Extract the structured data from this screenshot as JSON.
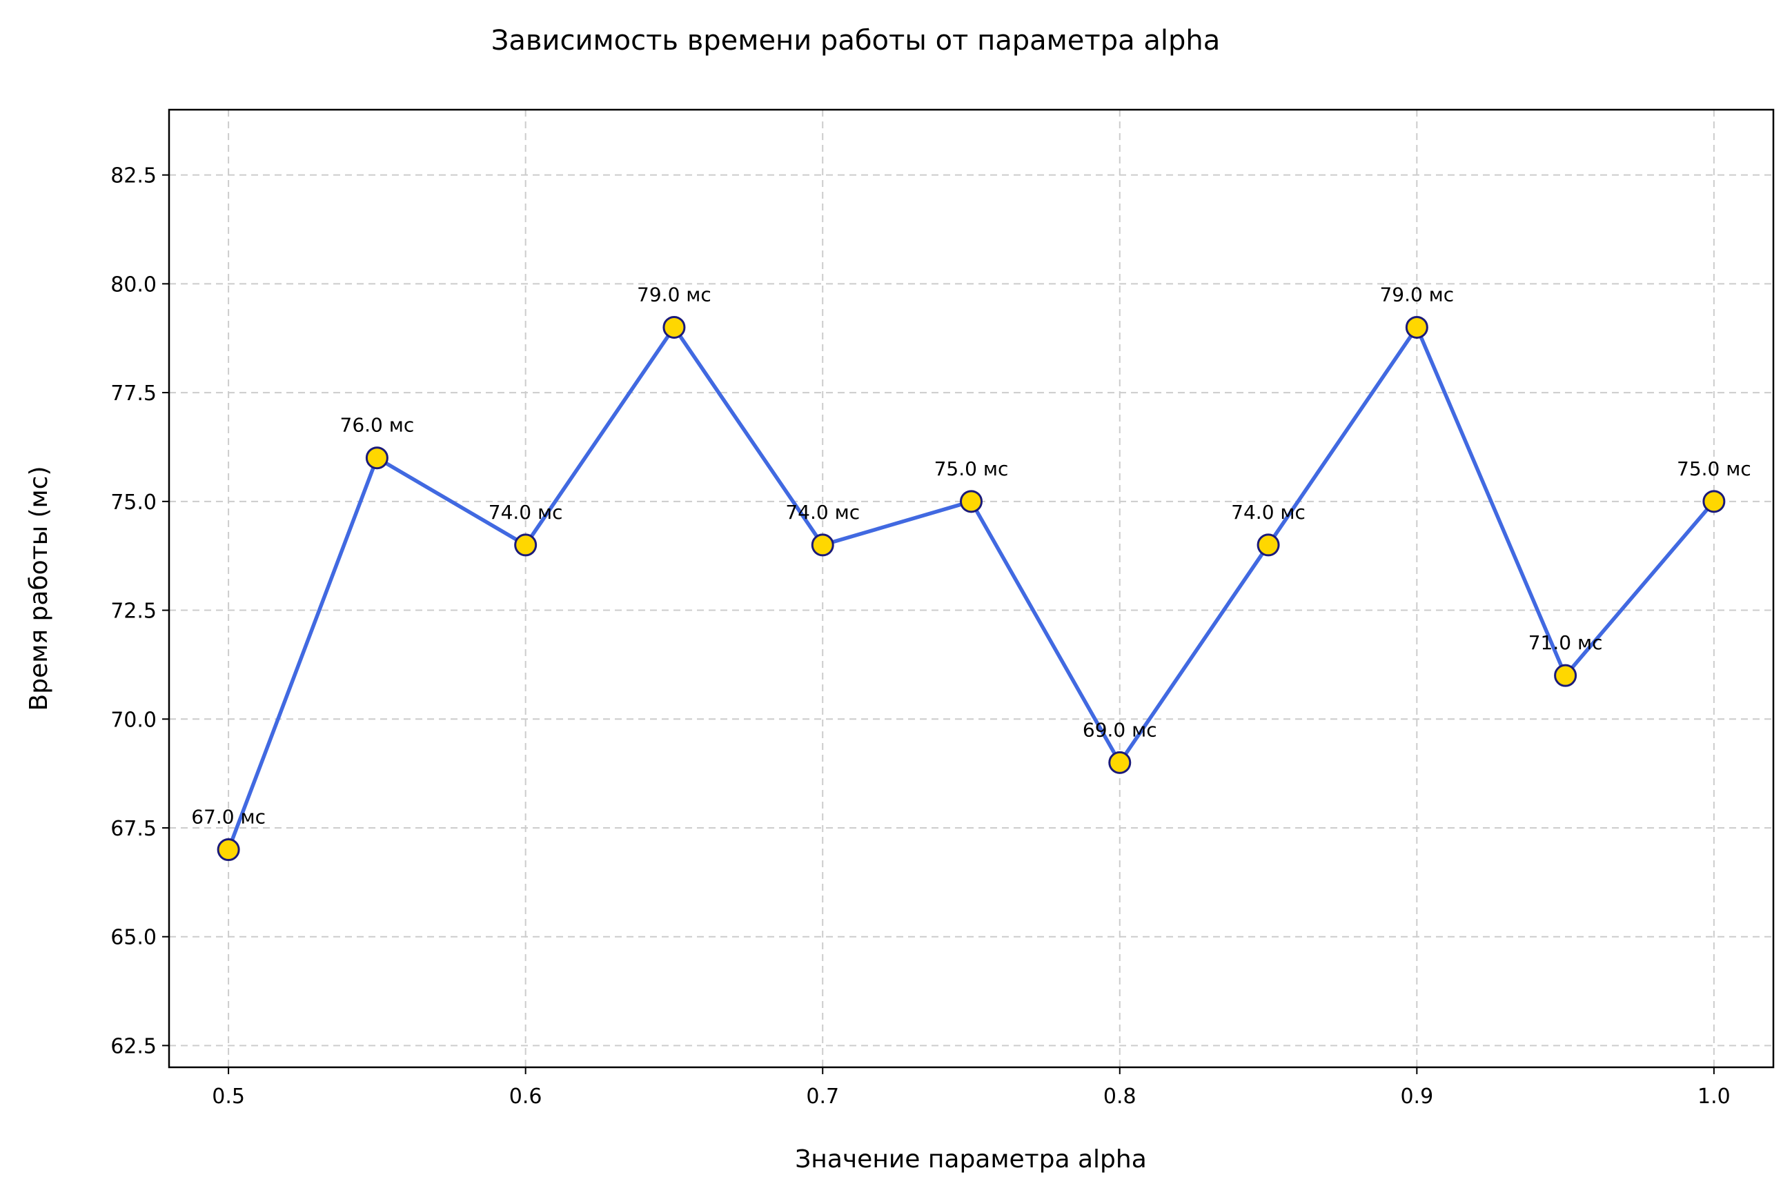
{
  "chart_data": {
    "type": "line",
    "title": "Зависимость времени работы от параметра alpha",
    "xlabel": "Значение параметра alpha",
    "ylabel": "Время работы (мс)",
    "x": [
      0.5,
      0.55,
      0.6,
      0.65,
      0.7,
      0.75,
      0.8,
      0.85,
      0.9,
      0.95,
      1.0
    ],
    "series": [
      {
        "values": [
          67.0,
          76.0,
          74.0,
          79.0,
          74.0,
          75.0,
          69.0,
          74.0,
          79.0,
          71.0,
          75.0
        ],
        "data_labels": [
          "67.0 мс",
          "76.0 мс",
          "74.0 мс",
          "79.0 мс",
          "74.0 мс",
          "75.0 мс",
          "69.0 мс",
          "74.0 мс",
          "79.0 мс",
          "71.0 мс",
          "75.0 мс"
        ],
        "line_color": "#4169e1",
        "marker_fill": "#ffd700",
        "marker_edge": "#1a1a7a"
      }
    ],
    "xlim": [
      0.48,
      1.02
    ],
    "ylim": [
      62.0,
      84.0
    ],
    "x_ticks": [
      0.5,
      0.6,
      0.7,
      0.8,
      0.9,
      1.0
    ],
    "x_tick_labels": [
      "0.5",
      "0.6",
      "0.7",
      "0.8",
      "0.9",
      "1.0"
    ],
    "y_ticks": [
      62.5,
      65.0,
      67.5,
      70.0,
      72.5,
      75.0,
      77.5,
      80.0,
      82.5
    ],
    "y_tick_labels": [
      "62.5",
      "65.0",
      "67.5",
      "70.0",
      "72.5",
      "75.0",
      "77.5",
      "80.0",
      "82.5"
    ],
    "grid": true,
    "legend": "none"
  }
}
